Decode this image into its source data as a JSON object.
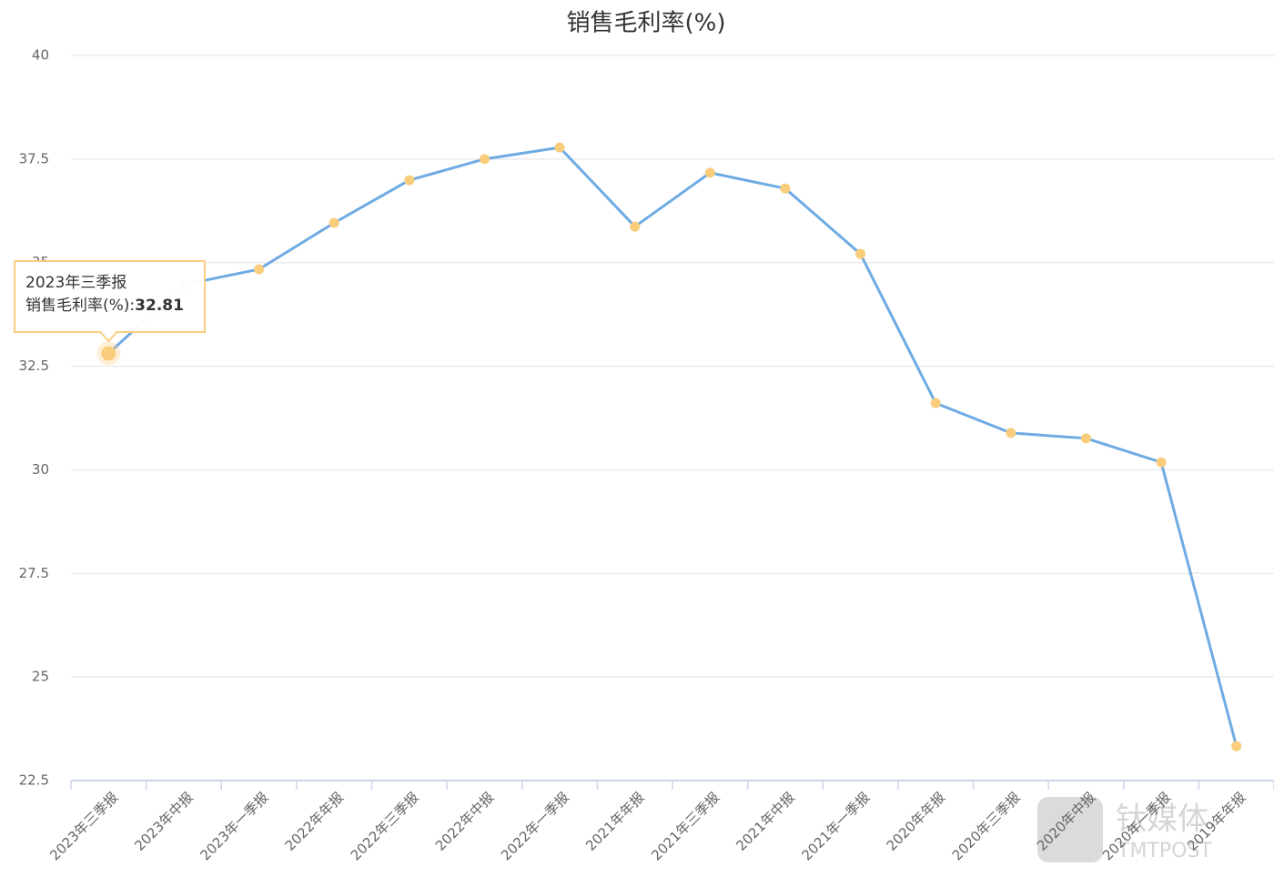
{
  "chart_data": {
    "type": "line",
    "title": "销售毛利率(%)",
    "categories": [
      "2023年三季报",
      "2023年中报",
      "2023年一季报",
      "2022年年报",
      "2022年三季报",
      "2022年中报",
      "2022年一季报",
      "2021年年报",
      "2021年三季报",
      "2021年中报",
      "2021年一季报",
      "2020年年报",
      "2020年三季报",
      "2020年中报",
      "2020年一季报",
      "2019年年报"
    ],
    "series": [
      {
        "name": "销售毛利率(%)",
        "color": "#6fabe3",
        "marker_color": "#f9cd7c",
        "values": [
          32.81,
          34.47,
          34.84,
          35.96,
          36.99,
          37.5,
          37.78,
          35.87,
          37.17,
          36.79,
          35.21,
          31.61,
          30.89,
          30.76,
          30.18,
          23.33
        ]
      }
    ],
    "ylim": [
      22.5,
      40
    ],
    "yticks": [
      22.5,
      25,
      27.5,
      30,
      32.5,
      35,
      37.5,
      40
    ],
    "grid": true,
    "tooltip": {
      "index": 0,
      "separator": ":"
    },
    "watermark": {
      "text": "钛媒体",
      "sub": "TMTPOST"
    }
  }
}
